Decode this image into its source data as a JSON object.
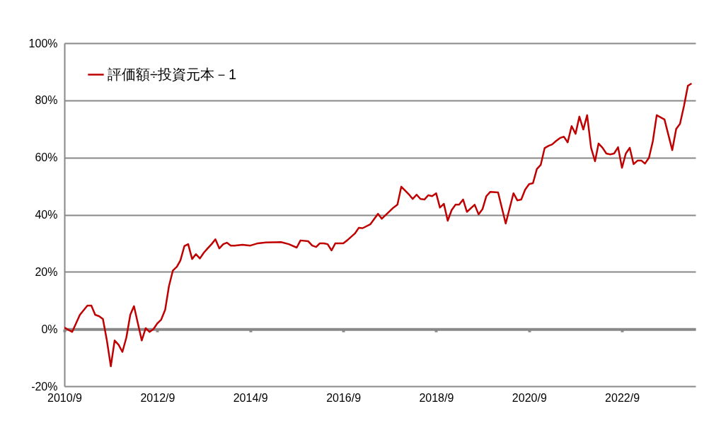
{
  "chart_data": {
    "type": "line",
    "x": [
      "2010-09",
      "2010-11",
      "2011-01",
      "2011-03",
      "2011-04",
      "2011-05",
      "2011-06",
      "2011-07",
      "2011-08",
      "2011-09",
      "2011-10",
      "2011-11",
      "2011-12",
      "2012-01",
      "2012-02",
      "2012-03",
      "2012-05",
      "2012-06",
      "2012-07",
      "2012-08",
      "2012-09",
      "2012-10",
      "2012-11",
      "2012-12",
      "2013-01",
      "2013-02",
      "2013-03",
      "2013-04",
      "2013-05",
      "2013-06",
      "2013-07",
      "2013-08",
      "2013-09",
      "2013-10",
      "2013-11",
      "2013-12",
      "2014-01",
      "2014-02",
      "2014-03",
      "2014-04",
      "2014-05",
      "2014-07",
      "2014-09",
      "2014-11",
      "2015-01",
      "2015-05",
      "2015-07",
      "2015-09",
      "2015-10",
      "2015-12",
      "2016-01",
      "2016-02",
      "2016-03",
      "2016-04",
      "2016-05",
      "2016-06",
      "2016-07",
      "2016-09",
      "2016-10",
      "2016-12",
      "2017-01",
      "2017-02",
      "2017-04",
      "2017-06",
      "2017-07",
      "2017-08",
      "2017-10",
      "2017-11",
      "2017-12",
      "2018-02",
      "2018-03",
      "2018-04",
      "2018-05",
      "2018-06",
      "2018-07",
      "2018-08",
      "2018-09",
      "2018-10",
      "2018-11",
      "2018-12",
      "2019-01",
      "2019-02",
      "2019-03",
      "2019-04",
      "2019-05",
      "2019-07",
      "2019-08",
      "2019-09",
      "2019-10",
      "2019-11",
      "2020-01",
      "2020-03",
      "2020-05",
      "2020-06",
      "2020-07",
      "2020-08",
      "2020-09",
      "2020-10",
      "2020-11",
      "2020-12",
      "2021-01",
      "2021-02",
      "2021-03",
      "2021-04",
      "2021-05",
      "2021-06",
      "2021-07",
      "2021-08",
      "2021-09",
      "2021-10",
      "2021-11",
      "2021-12",
      "2022-01",
      "2022-02",
      "2022-03",
      "2022-04",
      "2022-05",
      "2022-06",
      "2022-07",
      "2022-08",
      "2022-09",
      "2022-10",
      "2022-11",
      "2022-12",
      "2023-01",
      "2023-02",
      "2023-03",
      "2023-04",
      "2023-05",
      "2023-06",
      "2023-08",
      "2023-10",
      "2023-11",
      "2023-12",
      "2024-01",
      "2024-02",
      "2024-03"
    ],
    "series": [
      {
        "name": "評価額÷投資元本－1",
        "color": "#c00000",
        "values": [
          0.5,
          -1,
          5,
          8.2,
          8.2,
          5,
          4.5,
          3.5,
          -4,
          -13,
          -4,
          -5.5,
          -8,
          -3,
          5,
          8,
          -4,
          0.3,
          -1,
          0,
          2,
          3.3,
          6.7,
          15,
          20.5,
          21.8,
          24,
          29,
          29.7,
          24.5,
          26.2,
          24.7,
          26.7,
          28.2,
          29.7,
          31.4,
          28.2,
          29.7,
          30.2,
          29.2,
          29.2,
          29.5,
          29.2,
          30,
          30.3,
          30.4,
          29.7,
          28.5,
          31,
          30.7,
          29.2,
          28.7,
          30,
          30,
          29.7,
          27.5,
          30,
          30,
          31,
          33.4,
          35.4,
          35.3,
          36.6,
          40.3,
          38.6,
          39.9,
          42.5,
          43.5,
          49.8,
          47,
          45.5,
          47,
          45.5,
          45.3,
          46.8,
          46.5,
          47.5,
          42.5,
          43.8,
          37.9,
          41.6,
          43.5,
          43.5,
          45.3,
          41,
          43.5,
          40.1,
          42,
          46.5,
          48,
          47.8,
          36.9,
          47.5,
          45,
          45.3,
          48.8,
          50.7,
          51,
          56,
          57.4,
          63.3,
          64.1,
          64.6,
          65.8,
          66.8,
          67.3,
          65.3,
          71,
          68.3,
          74.3,
          69.8,
          74.8,
          63.4,
          58.7,
          64.9,
          63.4,
          61.4,
          61.1,
          61.4,
          63.6,
          56.4,
          61.4,
          63.4,
          57.7,
          58.9,
          58.9,
          57.9,
          59.9,
          65.6,
          74.8,
          73.3,
          62.6,
          70,
          71.8,
          78,
          85.1,
          85.9
        ]
      }
    ],
    "xlim": [
      "2010-09",
      "2024-04"
    ],
    "xticks": [
      {
        "value": "2010-09",
        "label": "2010/9"
      },
      {
        "value": "2012-09",
        "label": "2012/9"
      },
      {
        "value": "2014-09",
        "label": "2014/9"
      },
      {
        "value": "2016-09",
        "label": "2016/9"
      },
      {
        "value": "2018-09",
        "label": "2018/9"
      },
      {
        "value": "2020-09",
        "label": "2020/9"
      },
      {
        "value": "2022-09",
        "label": "2022/9"
      }
    ],
    "ylim": [
      -20,
      100
    ],
    "yticks": [
      {
        "value": -20,
        "label": "-20%"
      },
      {
        "value": 0,
        "label": "0%"
      },
      {
        "value": 20,
        "label": "20%"
      },
      {
        "value": 40,
        "label": "40%"
      },
      {
        "value": 60,
        "label": "60%"
      },
      {
        "value": 80,
        "label": "80%"
      },
      {
        "value": 100,
        "label": "100%"
      }
    ],
    "grid": "y",
    "legend": "top left",
    "line_style": "solid",
    "marker": "none"
  }
}
